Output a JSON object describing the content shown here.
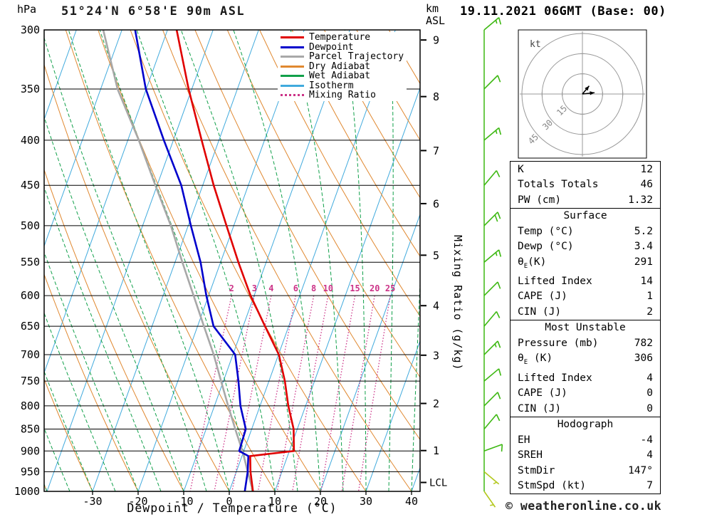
{
  "header": {
    "title": "51°24'N 6°58'E 90m ASL",
    "date": "19.11.2021 06GMT (Base: 00)"
  },
  "axes": {
    "pressure_unit": "hPa",
    "altitude_unit_line1": "km",
    "altitude_unit_line2": "ASL",
    "x_label": "Dewpoint / Temperature (°C)",
    "mixing_ratio_label": "Mixing Ratio (g/kg)",
    "pressure_ticks": [
      300,
      350,
      400,
      450,
      500,
      550,
      600,
      650,
      700,
      750,
      800,
      850,
      900,
      950,
      1000
    ],
    "temp_ticks": [
      -30,
      -20,
      -10,
      0,
      10,
      20,
      30,
      40
    ],
    "km_ticks": [
      {
        "km": 1,
        "p": 899
      },
      {
        "km": 2,
        "p": 795
      },
      {
        "km": 3,
        "p": 701
      },
      {
        "km": 4,
        "p": 616
      },
      {
        "km": 5,
        "p": 540
      },
      {
        "km": 6,
        "p": 472
      },
      {
        "km": 7,
        "p": 411
      },
      {
        "km": 8,
        "p": 357
      },
      {
        "km": 9,
        "p": 308
      }
    ],
    "lcl_label": "LCL",
    "lcl_pressure": 977
  },
  "legend": {
    "items": [
      {
        "label": "Temperature",
        "color": "#e00000",
        "dash": "solid"
      },
      {
        "label": "Dewpoint",
        "color": "#0000cc",
        "dash": "solid"
      },
      {
        "label": "Parcel Trajectory",
        "color": "#a8a8a8",
        "dash": "solid"
      },
      {
        "label": "Dry Adiabat",
        "color": "#e08830",
        "dash": "solid"
      },
      {
        "label": "Wet Adiabat",
        "color": "#11a04a",
        "dash": "solid"
      },
      {
        "label": "Isotherm",
        "color": "#40aadd",
        "dash": "solid"
      },
      {
        "label": "Mixing Ratio",
        "color": "#cc3388",
        "dash": "dotted"
      }
    ]
  },
  "chart_data": {
    "type": "skewt-log-p",
    "pressure_range_hpa": [
      300,
      1000
    ],
    "surface_temp_axis_range_c": [
      -40.6,
      41.9
    ],
    "isotherm_step_c": 10,
    "dry_adiabat_step_c": 10,
    "wet_adiabat_step_c": 5,
    "mixing_ratio_lines_gkg": [
      2,
      3,
      4,
      6,
      8,
      10,
      15,
      20,
      25
    ],
    "sounding": {
      "pressure_hpa": [
        300,
        350,
        400,
        450,
        500,
        550,
        600,
        650,
        700,
        750,
        800,
        850,
        900,
        912,
        950,
        1000
      ],
      "temperature_c": [
        -48.0,
        -40.7,
        -33.8,
        -27.6,
        -21.6,
        -16.1,
        -10.8,
        -5.2,
        0.1,
        3.5,
        6.2,
        9.2,
        11.0,
        1.8,
        3.1,
        5.2
      ],
      "dewpoint_c": [
        -57.1,
        -50.1,
        -42.1,
        -34.7,
        -29.4,
        -24.4,
        -20.5,
        -16.5,
        -9.5,
        -6.7,
        -4.3,
        -1.3,
        -1.0,
        1.4,
        2.5,
        3.4
      ],
      "parcel_c": [
        -64.1,
        -56.3,
        -47.6,
        -40.4,
        -33.8,
        -28.4,
        -23.3,
        -18.6,
        -14.2,
        -10.5,
        -7.0,
        -3.6,
        -0.3,
        0.4,
        2.5,
        5.2
      ]
    },
    "wind_barbs": [
      {
        "p": 300,
        "dir": 50,
        "spd": 15
      },
      {
        "p": 350,
        "dir": 45,
        "spd": 10
      },
      {
        "p": 400,
        "dir": 50,
        "spd": 15
      },
      {
        "p": 450,
        "dir": 40,
        "spd": 10
      },
      {
        "p": 500,
        "dir": 45,
        "spd": 20
      },
      {
        "p": 550,
        "dir": 50,
        "spd": 15
      },
      {
        "p": 600,
        "dir": 45,
        "spd": 10
      },
      {
        "p": 650,
        "dir": 40,
        "spd": 10
      },
      {
        "p": 700,
        "dir": 45,
        "spd": 15
      },
      {
        "p": 750,
        "dir": 50,
        "spd": 10
      },
      {
        "p": 800,
        "dir": 45,
        "spd": 10
      },
      {
        "p": 850,
        "dir": 40,
        "spd": 10
      },
      {
        "p": 900,
        "dir": 70,
        "spd": 10
      },
      {
        "p": 950,
        "dir": 130,
        "spd": 5
      },
      {
        "p": 1000,
        "dir": 145,
        "spd": 5
      }
    ],
    "hodograph": {
      "unit": "kt",
      "rings_kt": [
        15,
        30,
        45
      ],
      "arrows_uv_kt": [
        [
          [
            0,
            0
          ],
          [
            5,
            6
          ]
        ],
        [
          [
            0,
            0
          ],
          [
            9,
            1
          ]
        ]
      ]
    },
    "colors": {
      "isotherm": "#40aadd",
      "dry_adiabat": "#e08830",
      "wet_adiabat": "#11a04a",
      "mixing_ratio": "#cc3388",
      "temperature": "#e00000",
      "dewpoint": "#0000cc",
      "parcel": "#a8a8a8",
      "grid": "#000000",
      "barb": "#3db812",
      "barb_low": "#b4c81e",
      "hodograph_grid": "#999999"
    }
  },
  "panel": {
    "sections": [
      {
        "rows": [
          {
            "label": "K",
            "value": "12"
          },
          {
            "label": "Totals Totals",
            "value": "46"
          },
          {
            "label": "PW (cm)",
            "value": "1.32"
          }
        ]
      },
      {
        "title": "Surface",
        "rows": [
          {
            "label": "Temp (°C)",
            "value": "5.2"
          },
          {
            "label": "Dewp (°C)",
            "value": "3.4"
          },
          {
            "label": "θ_E(K)",
            "value": "291"
          },
          {
            "label": "Lifted Index",
            "value": "14"
          },
          {
            "label": "CAPE (J)",
            "value": "1"
          },
          {
            "label": "CIN (J)",
            "value": "2"
          }
        ]
      },
      {
        "title": "Most Unstable",
        "rows": [
          {
            "label": "Pressure (mb)",
            "value": "782"
          },
          {
            "label": "θ_E (K)",
            "value": "306"
          },
          {
            "label": "Lifted Index",
            "value": "4"
          },
          {
            "label": "CAPE (J)",
            "value": "0"
          },
          {
            "label": "CIN (J)",
            "value": "0"
          }
        ]
      },
      {
        "title": "Hodograph",
        "rows": [
          {
            "label": "EH",
            "value": "-4"
          },
          {
            "label": "SREH",
            "value": "4"
          },
          {
            "label": "StmDir",
            "value": "147°"
          },
          {
            "label": "StmSpd (kt)",
            "value": "7"
          }
        ]
      }
    ]
  },
  "footer": {
    "credit": "© weatheronline.co.uk"
  }
}
